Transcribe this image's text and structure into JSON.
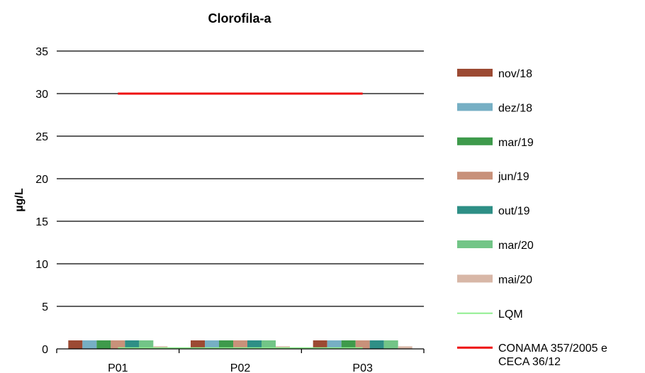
{
  "chart_data": {
    "type": "bar",
    "title": "Clorofila-a",
    "ylabel": "µg/L",
    "xlabel": "",
    "categories": [
      "P01",
      "P02",
      "P03"
    ],
    "ylim": [
      0,
      35
    ],
    "yticks": [
      0,
      5,
      10,
      15,
      20,
      25,
      30,
      35
    ],
    "grid": true,
    "legend_position": "right",
    "series": [
      {
        "name": "nov/18",
        "color": "#9C4A33",
        "values": [
          1.0,
          1.0,
          1.0
        ]
      },
      {
        "name": "dez/18",
        "color": "#76AFC4",
        "values": [
          1.0,
          1.0,
          1.0
        ]
      },
      {
        "name": "mar/19",
        "color": "#3E9A4B",
        "values": [
          1.0,
          1.0,
          1.0
        ]
      },
      {
        "name": "jun/19",
        "color": "#C8917A",
        "values": [
          1.0,
          1.0,
          1.0
        ]
      },
      {
        "name": "out/19",
        "color": "#2E8F86",
        "values": [
          1.0,
          1.0,
          1.0
        ]
      },
      {
        "name": "mar/20",
        "color": "#72C587",
        "values": [
          1.0,
          1.0,
          1.0
        ]
      },
      {
        "name": "mai/20",
        "color": "#D8B7A7",
        "values": [
          0.3,
          0.3,
          0.3
        ]
      }
    ],
    "lines": [
      {
        "name": "LQM",
        "color": "#90EE90",
        "value": 0.1
      },
      {
        "name": "CONAMA 357/2005 e CECA 36/12",
        "color": "#EE1111",
        "value": 30
      }
    ]
  }
}
